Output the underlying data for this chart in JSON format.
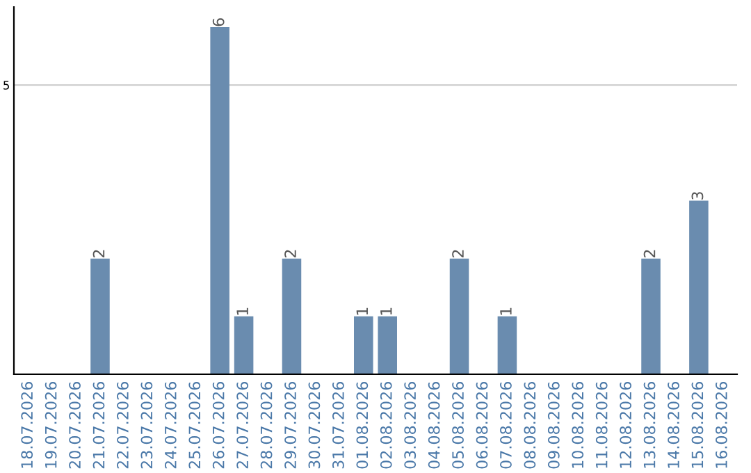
{
  "chart_data": {
    "type": "bar",
    "categories": [
      "18.07.2026",
      "19.07.2026",
      "20.07.2026",
      "21.07.2026",
      "22.07.2026",
      "23.07.2026",
      "24.07.2026",
      "25.07.2026",
      "26.07.2026",
      "27.07.2026",
      "28.07.2026",
      "29.07.2026",
      "30.07.2026",
      "31.07.2026",
      "01.08.2026",
      "02.08.2026",
      "03.08.2026",
      "04.08.2026",
      "05.08.2026",
      "06.08.2026",
      "07.08.2026",
      "08.08.2026",
      "09.08.2026",
      "10.08.2026",
      "11.08.2026",
      "12.08.2026",
      "13.08.2026",
      "14.08.2026",
      "15.08.2026",
      "16.08.2026"
    ],
    "values": [
      0,
      0,
      0,
      2,
      0,
      0,
      0,
      0,
      6,
      1,
      0,
      2,
      0,
      0,
      1,
      1,
      0,
      0,
      2,
      0,
      1,
      0,
      0,
      0,
      0,
      0,
      2,
      0,
      3,
      0
    ],
    "value_labels": [
      null,
      null,
      null,
      "2",
      null,
      null,
      null,
      null,
      "6",
      "1",
      null,
      "2",
      null,
      null,
      "1",
      "1",
      null,
      null,
      "2",
      null,
      "1",
      null,
      null,
      null,
      null,
      null,
      "2",
      null,
      "3",
      null
    ],
    "color": "#6a8caf",
    "ylim": [
      0,
      6.35
    ],
    "yticks": [
      5
    ],
    "grid": "y",
    "legend": false
  }
}
